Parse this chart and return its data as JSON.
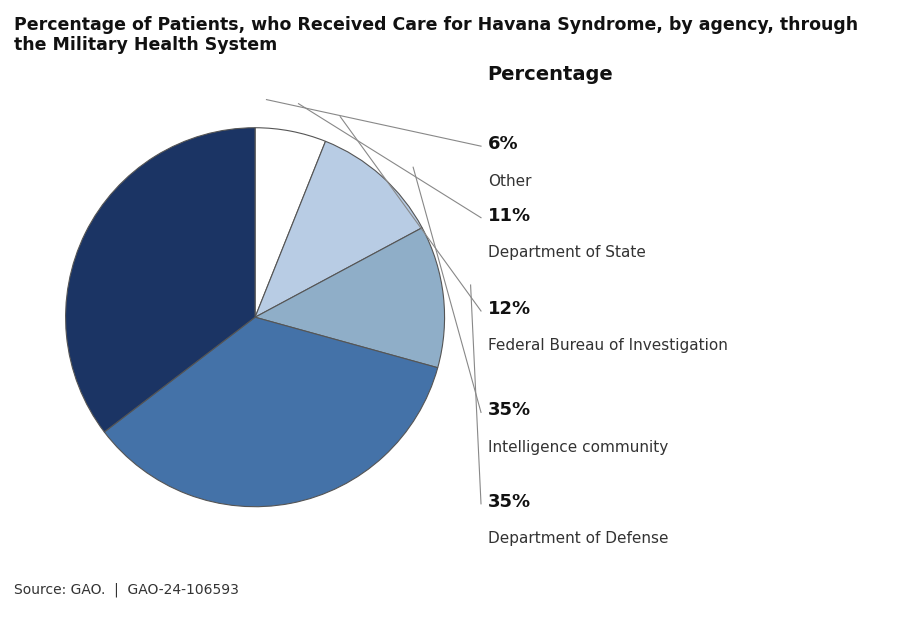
{
  "title": "Percentage of Patients, who Received Care for Havana Syndrome, by agency, through\nthe Military Health System",
  "legend_title": "Percentage",
  "source": "Source: GAO.  |  GAO-24-106593",
  "slices": [
    {
      "label": "Other",
      "pct": 6,
      "color": "#FFFFFF"
    },
    {
      "label": "Department of State",
      "pct": 11,
      "color": "#B8CCE4"
    },
    {
      "label": "Federal Bureau of Investigation",
      "pct": 12,
      "color": "#8FAEC8"
    },
    {
      "label": "Intelligence community",
      "pct": 35,
      "color": "#4472A8"
    },
    {
      "label": "Department of Defense",
      "pct": 35,
      "color": "#1B3464"
    }
  ],
  "start_angle": 90,
  "figure_bg": "#FFFFFF",
  "edge_color": "#555555",
  "line_color": "#888888",
  "title_fontsize": 12.5,
  "pct_fontsize": 13,
  "label_fontsize": 11,
  "legend_fontsize": 14,
  "source_fontsize": 10
}
